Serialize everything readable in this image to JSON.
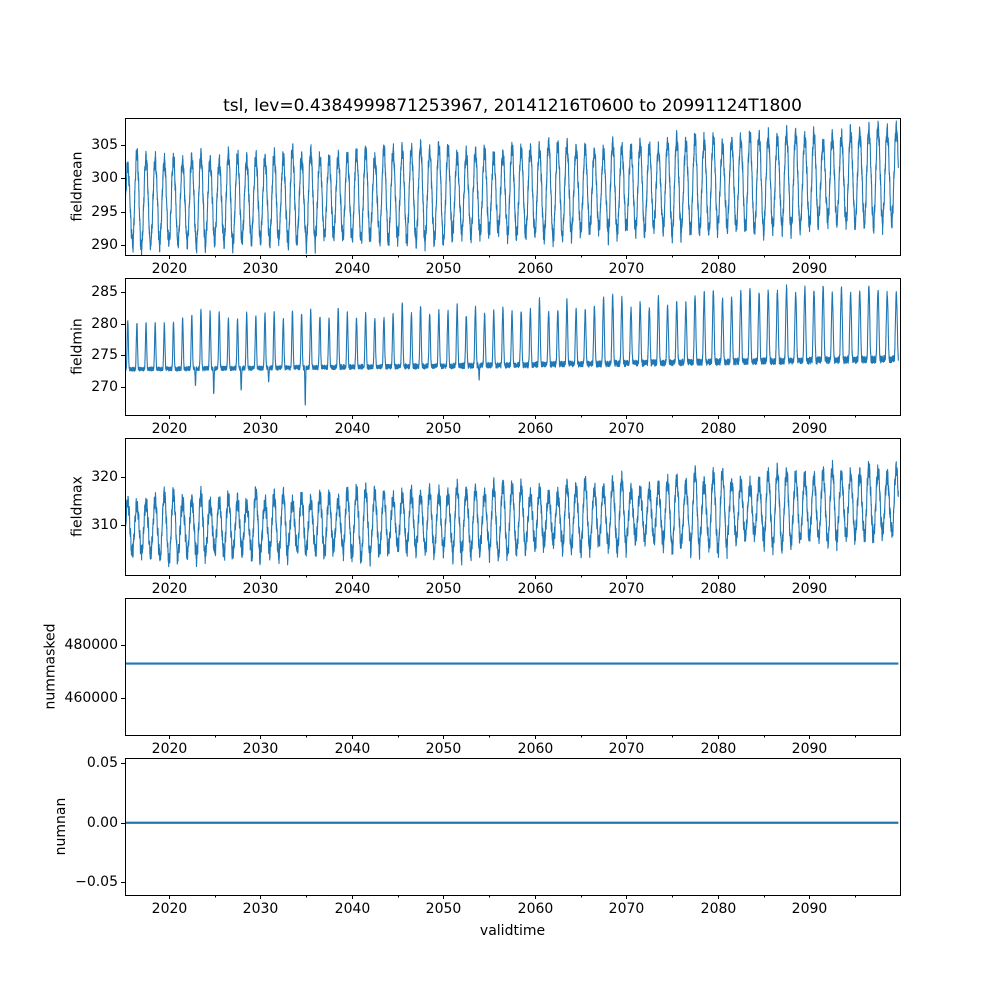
{
  "chart_data": {
    "type": "line",
    "title": "tsl, lev=0.4384999871253967, 20141216T0600 to 20991124T1800",
    "xlabel": "validtime",
    "line_color": "#1f77b4",
    "grid": false,
    "legend": "none",
    "x_axis": {
      "lim": [
        2015.2,
        2099.9
      ],
      "ticks": [
        2020,
        2030,
        2040,
        2050,
        2060,
        2070,
        2080,
        2090
      ],
      "tick_labels": [
        "2020",
        "2030",
        "2040",
        "2050",
        "2060",
        "2070",
        "2080",
        "2090"
      ],
      "minor_step": 5,
      "data_start": 2015.2,
      "data_end": 2099.72
    },
    "subplots": [
      {
        "ylabel": "fieldmean",
        "yticks": [
          290,
          295,
          300,
          305
        ],
        "ytick_labels": [
          "290",
          "295",
          "300",
          "305"
        ],
        "ylim": [
          288.5,
          309.0
        ],
        "series_style": "seasonal-band",
        "seed": 7,
        "envelope": {
          "years": [
            2015,
            2030,
            2050,
            2070,
            2090,
            2100
          ],
          "low": [
            289.4,
            290.0,
            290.6,
            291.4,
            292.6,
            293.4
          ],
          "high": [
            303.2,
            303.9,
            304.6,
            305.4,
            306.6,
            307.6
          ]
        },
        "noise_band": 1.5,
        "peak_jitter": 0.9
      },
      {
        "ylabel": "fieldmin",
        "yticks": [
          270,
          275,
          280,
          285
        ],
        "ytick_labels": [
          "270",
          "275",
          "280",
          "285"
        ],
        "ylim": [
          265.6,
          287.2
        ],
        "series_style": "baseline-peaks",
        "seed": 13,
        "baseline": {
          "years": [
            2015,
            2050,
            2100
          ],
          "values": [
            272.8,
            273.3,
            274.4
          ]
        },
        "baseline_noise": [
          0.45,
          0.85
        ],
        "peak_high": {
          "years": [
            2015,
            2040,
            2070,
            2100
          ],
          "values": [
            281.0,
            281.8,
            283.3,
            285.7
          ]
        },
        "peak_jitter": 1.2,
        "peak_sharpness": [
          6,
          2.6
        ],
        "dips": [
          {
            "year": 2022.9,
            "value": 270.3
          },
          {
            "year": 2024.9,
            "value": 268.9
          },
          {
            "year": 2027.9,
            "value": 269.4
          },
          {
            "year": 2030.9,
            "value": 270.7
          },
          {
            "year": 2034.9,
            "value": 267.3
          },
          {
            "year": 2053.9,
            "value": 271.3
          }
        ]
      },
      {
        "ylabel": "fieldmax",
        "yticks": [
          310,
          320
        ],
        "ytick_labels": [
          "310",
          "320"
        ],
        "ylim": [
          299.6,
          328.1
        ],
        "series_style": "seasonal-band",
        "seed": 21,
        "envelope": {
          "years": [
            2015,
            2040,
            2060,
            2080,
            2100
          ],
          "low": [
            302.8,
            303.6,
            304.4,
            305.4,
            306.6
          ],
          "high": [
            315.8,
            317.0,
            318.2,
            320.2,
            322.6
          ]
        },
        "noise_band": 2.1,
        "peak_jitter": 1.6,
        "extra_peaks": [
          {
            "year": 2046,
            "value": 322.3
          },
          {
            "year": 2067,
            "value": 321.2
          },
          {
            "year": 2078,
            "value": 324.3
          },
          {
            "year": 2096,
            "value": 326.8
          }
        ]
      },
      {
        "ylabel": "nummasked",
        "yticks": [
          460000,
          480000
        ],
        "ytick_labels": [
          "460000",
          "480000"
        ],
        "ylim": [
          446100,
          497700
        ],
        "series_style": "constant",
        "value": 473000
      },
      {
        "ylabel": "numnan",
        "yticks": [
          -0.05,
          0.0,
          0.05
        ],
        "ytick_labels": [
          "−0.05",
          "0.00",
          "0.05"
        ],
        "ylim": [
          -0.0609,
          0.0546
        ],
        "series_style": "constant",
        "value": 0.0,
        "show_xlabel": true
      }
    ]
  }
}
